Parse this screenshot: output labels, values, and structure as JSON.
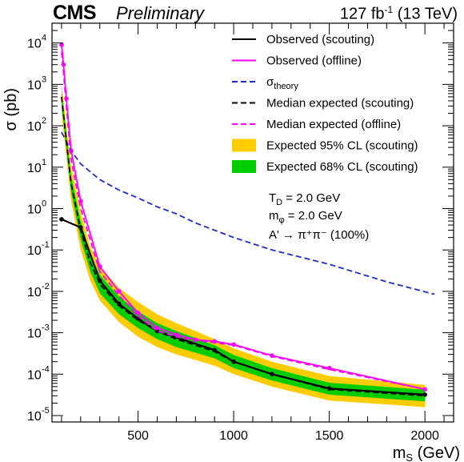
{
  "header": {
    "experiment": "CMS",
    "status": "Preliminary",
    "lumi_value": "127 fb",
    "lumi_exp": "-1",
    "energy": "(13 TeV)"
  },
  "chart_data": {
    "type": "line",
    "xlabel": "m_S (GeV)",
    "ylabel": "σ (pb)",
    "xlim": [
      50,
      2150
    ],
    "ylog": true,
    "ylim": [
      7e-06,
      30000.0
    ],
    "xticks": [
      500,
      1000,
      1500,
      2000
    ],
    "yticks": [
      {
        "v": 1e-05,
        "exp": "-5"
      },
      {
        "v": 0.0001,
        "exp": "-4"
      },
      {
        "v": 0.001,
        "exp": "-3"
      },
      {
        "v": 0.01,
        "exp": "-2"
      },
      {
        "v": 0.1,
        "exp": "-1"
      },
      {
        "v": 1,
        "exp": "0"
      },
      {
        "v": 10,
        "exp": "1"
      },
      {
        "v": 100,
        "exp": "2"
      },
      {
        "v": 1000,
        "exp": "3"
      },
      {
        "v": 10000,
        "exp": "4"
      }
    ],
    "grid": false,
    "legend_position": "top-right",
    "annotations": {
      "td": "T_D = 2.0 GeV",
      "mphi": "m_φ = 2.0 GeV",
      "decay": "A' → π⁺π⁻ (100%)"
    },
    "series": [
      {
        "name": "Observed (scouting)",
        "color": "#000000",
        "style": "solid",
        "markers": true,
        "x": [
          100,
          200,
          300,
          400,
          500,
          600,
          900,
          1000,
          1200,
          1500,
          2000
        ],
        "y": [
          0.55,
          0.35,
          0.018,
          0.005,
          0.0022,
          0.0011,
          0.00038,
          0.0002,
          0.0001,
          4.5e-05,
          3.2e-05
        ]
      },
      {
        "name": "Observed (offline)",
        "color": "#ff00ff",
        "style": "solid",
        "markers": true,
        "x": [
          100,
          110,
          125,
          150,
          200,
          300,
          400,
          500,
          600,
          700,
          800,
          900,
          1000,
          1200,
          1500,
          2000
        ],
        "y": [
          9000,
          3000,
          450,
          25,
          1.5,
          0.04,
          0.01,
          0.003,
          0.0013,
          0.0009,
          0.00068,
          0.00062,
          0.00052,
          0.00028,
          0.00014,
          4.3e-05
        ]
      },
      {
        "name": "σ_theory",
        "color": "#1f2dc8",
        "style": "dashed",
        "markers": false,
        "x": [
          100,
          150,
          200,
          300,
          400,
          500,
          600,
          700,
          800,
          900,
          1000,
          1200,
          1500,
          1800,
          2050
        ],
        "y": [
          70,
          25,
          12,
          5,
          2.8,
          1.8,
          1.1,
          0.75,
          0.45,
          0.3,
          0.2,
          0.1,
          0.045,
          0.017,
          0.0085
        ]
      },
      {
        "name": "Median expected (scouting)",
        "color": "#000000",
        "style": "dashed",
        "markers": false,
        "x": [
          100,
          150,
          200,
          250,
          300,
          400,
          500,
          600,
          700,
          800,
          900,
          1000,
          1200,
          1500,
          2000
        ],
        "y": [
          500,
          4,
          0.3,
          0.05,
          0.015,
          0.0045,
          0.002,
          0.0011,
          0.0007,
          0.0005,
          0.00035,
          0.0002,
          0.0001,
          4.3e-05,
          3e-05
        ]
      },
      {
        "name": "Median expected (offline)",
        "color": "#ff00ff",
        "style": "dashed",
        "markers": false,
        "x": [
          100,
          110,
          125,
          150,
          200,
          300,
          400,
          500,
          600,
          700,
          800,
          900,
          1000,
          1200,
          1500,
          2000
        ],
        "y": [
          6000,
          2000,
          300,
          15,
          1.0,
          0.03,
          0.008,
          0.0025,
          0.0011,
          0.0008,
          0.00065,
          0.00058,
          0.0005,
          0.00027,
          0.00013,
          4.3e-05
        ]
      }
    ],
    "bands": [
      {
        "name": "Expected 95% CL (scouting)",
        "color": "#ffcc00",
        "x": [
          100,
          150,
          200,
          250,
          300,
          400,
          500,
          600,
          700,
          800,
          900,
          1000,
          1200,
          1500,
          2000
        ],
        "lo": [
          200,
          1.5,
          0.1,
          0.018,
          0.006,
          0.0018,
          0.0008,
          0.00045,
          0.0003,
          0.00022,
          0.00016,
          0.0001,
          5e-05,
          2.3e-05,
          1.6e-05
        ],
        "hi": [
          1000,
          10,
          0.8,
          0.12,
          0.04,
          0.012,
          0.0055,
          0.0028,
          0.0017,
          0.0011,
          0.0007,
          0.00042,
          0.0002,
          9e-05,
          5.5e-05
        ]
      },
      {
        "name": "Expected 68% CL (scouting)",
        "color": "#00cc00",
        "x": [
          100,
          150,
          200,
          250,
          300,
          400,
          500,
          600,
          700,
          800,
          900,
          1000,
          1200,
          1500,
          2000
        ],
        "lo": [
          320,
          2.5,
          0.18,
          0.03,
          0.009,
          0.0028,
          0.0013,
          0.0007,
          0.00045,
          0.00033,
          0.00024,
          0.00014,
          7e-05,
          3.2e-05,
          2.2e-05
        ],
        "hi": [
          700,
          6,
          0.5,
          0.08,
          0.025,
          0.0075,
          0.0033,
          0.0017,
          0.0011,
          0.00075,
          0.0005,
          0.00029,
          0.00014,
          6.2e-05,
          4.2e-05
        ]
      }
    ]
  }
}
